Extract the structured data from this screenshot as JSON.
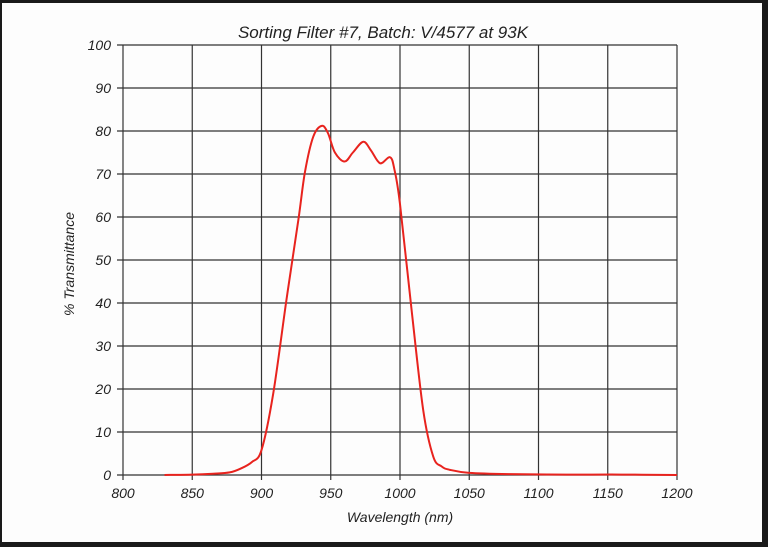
{
  "chart_data": {
    "type": "line",
    "title": "Sorting Filter #7, Batch: V/4577  at 93K",
    "xlabel": "Wavelength (nm)",
    "ylabel": "% Transmittance",
    "xlim": [
      800,
      1200
    ],
    "ylim": [
      0,
      100
    ],
    "xticks": [
      800,
      850,
      900,
      950,
      1000,
      1050,
      1100,
      1150,
      1200
    ],
    "yticks": [
      0,
      10,
      20,
      30,
      40,
      50,
      60,
      70,
      80,
      90,
      100
    ],
    "grid": true,
    "line_color": "#e8231e",
    "series": [
      {
        "x": [
          830,
          850,
          865,
          877,
          885,
          893,
          900,
          908.5,
          918,
          926.6,
          931.4,
          937.4,
          943.5,
          948,
          953,
          960,
          966,
          973.5,
          979,
          985.6,
          992.8,
          996,
          1000,
          1008.5,
          1016.8,
          1024,
          1030,
          1036,
          1050,
          1080,
          1120,
          1160,
          1200
        ],
        "y": [
          0,
          0.1,
          0.3,
          0.6,
          1.5,
          3,
          5.8,
          19,
          40.7,
          59.3,
          70.5,
          78.7,
          81.2,
          79.5,
          75,
          72.9,
          75,
          77.5,
          75.5,
          72.5,
          73.9,
          71,
          63,
          38,
          15,
          4.3,
          2,
          1.2,
          0.5,
          0.2,
          0.1,
          0.1,
          0
        ]
      }
    ]
  }
}
